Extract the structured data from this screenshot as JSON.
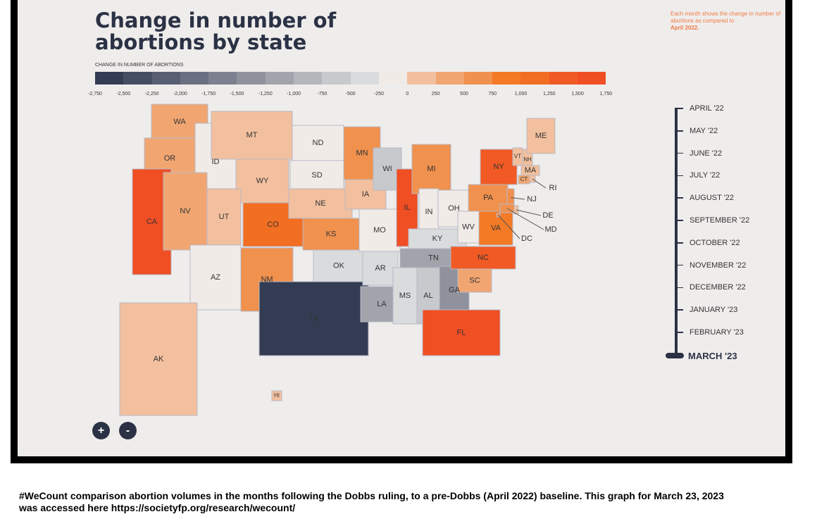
{
  "title": "Change in number of abortions by state",
  "note": {
    "text": "Each month shows the change in number of abortions as compared to",
    "emphasis": "April 2022."
  },
  "legend": {
    "title": "CHANGE IN NUMBER OF ABORTIONS",
    "ticks": [
      "-2,750",
      "-2,500",
      "-2,250",
      "-2,000",
      "-1,750",
      "-1,500",
      "-1,250",
      "-1,000",
      "-750",
      "-500",
      "-250",
      "0",
      "250",
      "500",
      "750",
      "1,000",
      "1,250",
      "1,500",
      "1,750"
    ],
    "colors": [
      "#333c52",
      "#454d63",
      "#585f73",
      "#6a7081",
      "#7d818f",
      "#8f929c",
      "#a2a4ac",
      "#b5b6bc",
      "#c8c9cd",
      "#dadbdd",
      "#f1ebe8",
      "#f2c09e",
      "#f1a672",
      "#f0914e",
      "#f47a25",
      "#f26e22",
      "#f15a24",
      "#f04e23"
    ]
  },
  "chart_data": {
    "type": "choropleth",
    "title": "Change in number of abortions by state",
    "period": "MARCH '23",
    "baseline": "April 2022",
    "states": [
      {
        "abbr": "WA",
        "range": [
          250,
          500
        ]
      },
      {
        "abbr": "OR",
        "range": [
          250,
          500
        ]
      },
      {
        "abbr": "CA",
        "range": [
          1500,
          1750
        ]
      },
      {
        "abbr": "ID",
        "range": [
          -250,
          0
        ]
      },
      {
        "abbr": "NV",
        "range": [
          250,
          500
        ]
      },
      {
        "abbr": "MT",
        "range": [
          0,
          250
        ]
      },
      {
        "abbr": "WY",
        "range": [
          0,
          250
        ]
      },
      {
        "abbr": "UT",
        "range": [
          0,
          250
        ]
      },
      {
        "abbr": "CO",
        "range": [
          1000,
          1250
        ]
      },
      {
        "abbr": "AZ",
        "range": [
          -250,
          0
        ]
      },
      {
        "abbr": "NM",
        "range": [
          500,
          750
        ]
      },
      {
        "abbr": "ND",
        "range": [
          -250,
          0
        ]
      },
      {
        "abbr": "SD",
        "range": [
          -250,
          0
        ]
      },
      {
        "abbr": "NE",
        "range": [
          0,
          250
        ]
      },
      {
        "abbr": "KS",
        "range": [
          500,
          750
        ]
      },
      {
        "abbr": "OK",
        "range": [
          -500,
          -250
        ]
      },
      {
        "abbr": "TX",
        "range": [
          -2750,
          -2500
        ]
      },
      {
        "abbr": "MN",
        "range": [
          500,
          750
        ]
      },
      {
        "abbr": "IA",
        "range": [
          0,
          250
        ]
      },
      {
        "abbr": "MO",
        "range": [
          -250,
          0
        ]
      },
      {
        "abbr": "AR",
        "range": [
          -500,
          -250
        ]
      },
      {
        "abbr": "LA",
        "range": [
          -1250,
          -1000
        ]
      },
      {
        "abbr": "WI",
        "range": [
          -750,
          -500
        ]
      },
      {
        "abbr": "IL",
        "range": [
          1500,
          1750
        ]
      },
      {
        "abbr": "MI",
        "range": [
          500,
          750
        ]
      },
      {
        "abbr": "IN",
        "range": [
          -250,
          0
        ]
      },
      {
        "abbr": "OH",
        "range": [
          -250,
          0
        ]
      },
      {
        "abbr": "KY",
        "range": [
          -500,
          -250
        ]
      },
      {
        "abbr": "TN",
        "range": [
          -1250,
          -1000
        ]
      },
      {
        "abbr": "MS",
        "range": [
          -500,
          -250
        ]
      },
      {
        "abbr": "AL",
        "range": [
          -750,
          -500
        ]
      },
      {
        "abbr": "GA",
        "range": [
          -1500,
          -1250
        ]
      },
      {
        "abbr": "FL",
        "range": [
          1500,
          1750
        ]
      },
      {
        "abbr": "SC",
        "range": [
          250,
          500
        ]
      },
      {
        "abbr": "NC",
        "range": [
          1250,
          1500
        ]
      },
      {
        "abbr": "VA",
        "range": [
          750,
          1000
        ]
      },
      {
        "abbr": "WV",
        "range": [
          -250,
          0
        ]
      },
      {
        "abbr": "PA",
        "range": [
          500,
          750
        ]
      },
      {
        "abbr": "NY",
        "range": [
          1250,
          1500
        ]
      },
      {
        "abbr": "NJ",
        "range": [
          500,
          750
        ]
      },
      {
        "abbr": "DE",
        "range": [
          0,
          250
        ]
      },
      {
        "abbr": "MD",
        "range": [
          500,
          750
        ]
      },
      {
        "abbr": "DC",
        "range": [
          500,
          750
        ]
      },
      {
        "abbr": "VT",
        "range": [
          0,
          250
        ]
      },
      {
        "abbr": "NH",
        "range": [
          0,
          250
        ]
      },
      {
        "abbr": "ME",
        "range": [
          0,
          250
        ]
      },
      {
        "abbr": "MA",
        "range": [
          0,
          250
        ]
      },
      {
        "abbr": "CT",
        "range": [
          250,
          500
        ]
      },
      {
        "abbr": "RI",
        "range": [
          0,
          250
        ]
      },
      {
        "abbr": "AK",
        "range": [
          0,
          250
        ]
      },
      {
        "abbr": "HI",
        "range": [
          0,
          250
        ]
      }
    ]
  },
  "timeline": {
    "months": [
      "APRIL '22",
      "MAY '22",
      "JUNE '22",
      "JULY '22",
      "AUGUST '22",
      "SEPTEMBER '22",
      "OCTOBER '22",
      "NOVEMBER '22",
      "DECEMBER '22",
      "JANUARY '23",
      "FEBRUARY '23",
      "MARCH '23"
    ],
    "selected": "MARCH '23"
  },
  "zoom": {
    "in_label": "+",
    "out_label": "-"
  },
  "caption": "#WeCount comparison abortion volumes in the months following the Dobbs ruling, to a pre-Dobbs (April 2022) baseline. This graph for March 23, 2023 was accessed here https://societyfp.org/research/wecount/"
}
